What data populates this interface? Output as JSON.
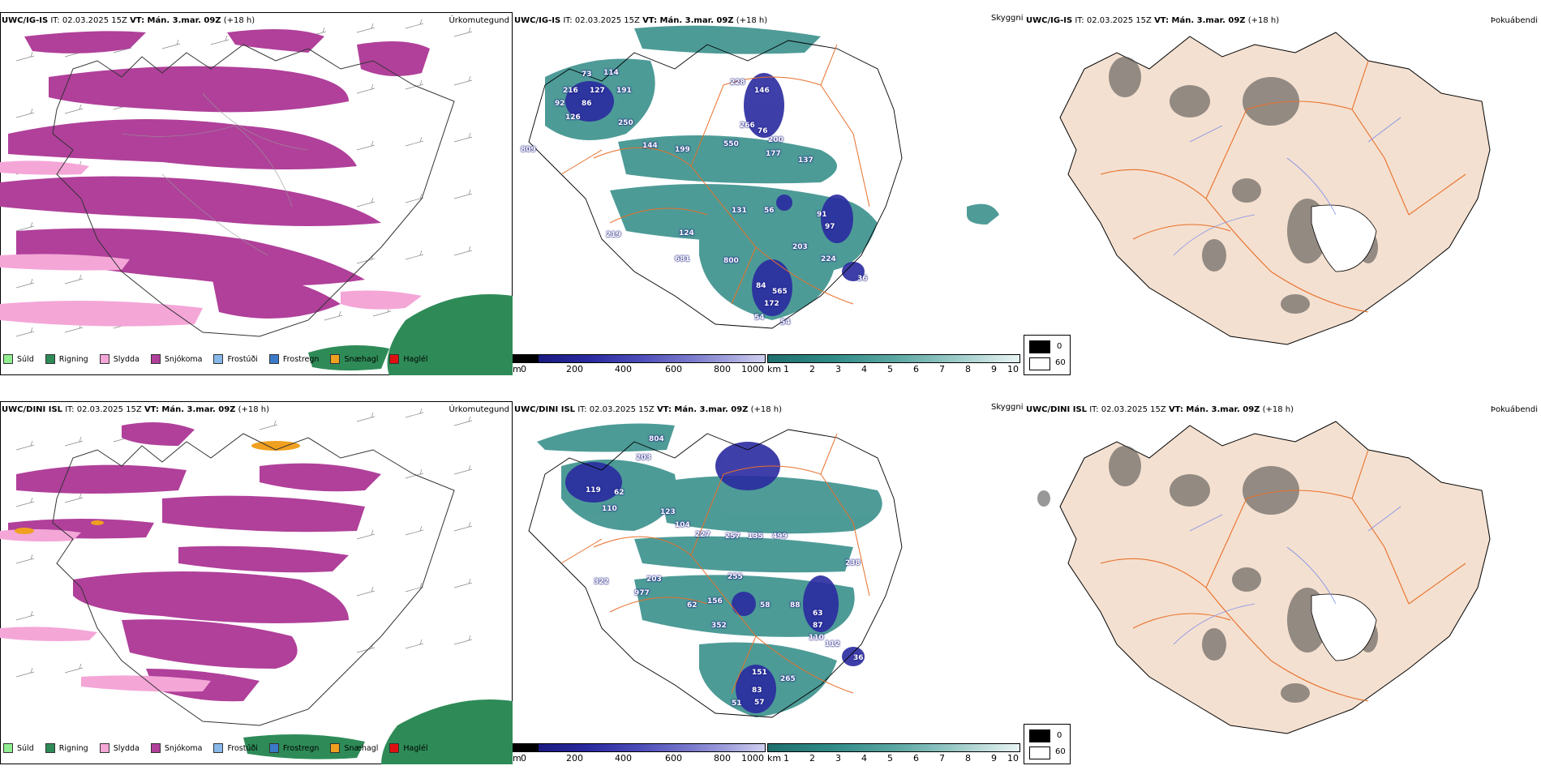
{
  "rows": [
    {
      "precip": {
        "model": "UWC/IG-IS",
        "it": "IT: 02.03.2025 15Z",
        "vt": "VT: Mán. 3.mar. 09Z",
        "lead": "(+18 h)",
        "name": "Úrkomutegund"
      },
      "vis": {
        "model": "UWC/IG-IS",
        "it": "IT: 02.03.2025 15Z",
        "vt": "VT: Mán. 3.mar. 09Z",
        "lead": "(+18 h)",
        "name": "Skyggni",
        "labels": [
          "73",
          "114",
          "216",
          "127",
          "191",
          "92",
          "86",
          "126",
          "250",
          "228",
          "146",
          "266",
          "76",
          "200",
          "144",
          "199",
          "550",
          "177",
          "137",
          "56",
          "131",
          "91",
          "97",
          "219",
          "124",
          "203",
          "224",
          "681",
          "800",
          "84",
          "565",
          "172",
          "54",
          "54",
          "36",
          "809"
        ]
      },
      "fog": {
        "model": "UWC/IG-IS",
        "it": "IT: 02.03.2025 15Z",
        "vt": "VT: Mán. 3.mar. 09Z",
        "lead": "(+18 h)",
        "name": "Þokuábendi"
      }
    },
    {
      "precip": {
        "model": "UWC/DINI ISL",
        "it": "IT: 02.03.2025 15Z",
        "vt": "VT: Mán. 3.mar. 09Z",
        "lead": "(+18 h)",
        "name": "Úrkomutegund"
      },
      "vis": {
        "model": "UWC/DINI ISL",
        "it": "IT: 02.03.2025 15Z",
        "vt": "VT: Mán. 3.mar. 09Z",
        "lead": "(+18 h)",
        "name": "Skyggni",
        "labels": [
          "804",
          "203",
          "119",
          "62",
          "110",
          "123",
          "104",
          "227",
          "257",
          "135",
          "499",
          "238",
          "322",
          "203",
          "977",
          "255",
          "62",
          "156",
          "58",
          "88",
          "63",
          "352",
          "87",
          "110",
          "112",
          "36",
          "151",
          "265",
          "83",
          "51",
          "57"
        ]
      },
      "fog": {
        "model": "UWC/DINI ISL",
        "it": "IT: 02.03.2025 15Z",
        "vt": "VT: Mán. 3.mar. 09Z",
        "lead": "(+18 h)",
        "name": "Þokuábendi"
      }
    }
  ],
  "precip_legend": [
    {
      "label": "Súld",
      "color": "#90ee90"
    },
    {
      "label": "Rigning",
      "color": "#2e8b57"
    },
    {
      "label": "Slydda",
      "color": "#f4a6d7"
    },
    {
      "label": "Snjókoma",
      "color": "#b0409a"
    },
    {
      "label": "Frostúði",
      "color": "#87b8ea"
    },
    {
      "label": "Frostregn",
      "color": "#3a7ac8"
    },
    {
      "label": "Snæhagl",
      "color": "#f0a020"
    },
    {
      "label": "Haglél",
      "color": "#e01010"
    }
  ],
  "vis_m_bar": {
    "unit": "m",
    "ticks": [
      "0",
      "200",
      "400",
      "600",
      "800",
      "1000"
    ]
  },
  "vis_km_bar": {
    "unit": "km",
    "ticks": [
      "1",
      "2",
      "3",
      "4",
      "5",
      "6",
      "7",
      "8",
      "9",
      "10"
    ]
  },
  "fog_legend": {
    "high": "0",
    "low": "60"
  },
  "colors": {
    "snow": "#b0409a",
    "sleet": "#f4a6d7",
    "rain": "#2e8b57",
    "teal": "#2f8a86",
    "fogland": "#f4e0d0",
    "road": "#e8702a"
  }
}
